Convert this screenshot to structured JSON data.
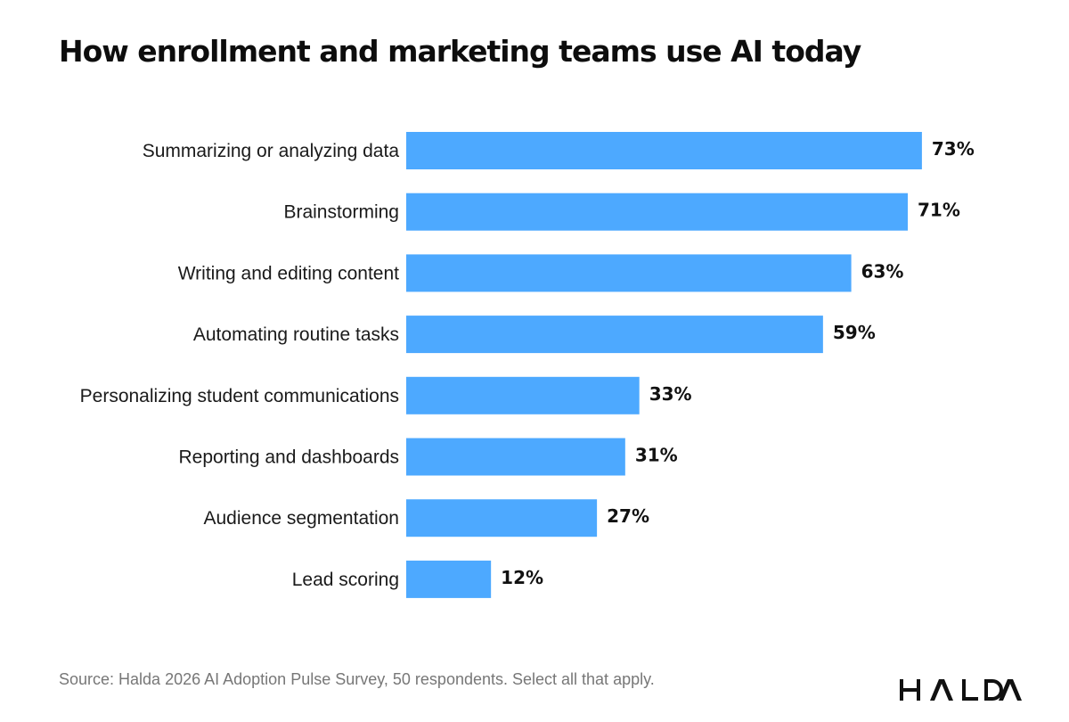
{
  "chart_data": {
    "type": "bar",
    "orientation": "horizontal",
    "title": "How enrollment and marketing teams use AI today",
    "categories": [
      "Summarizing or analyzing data",
      "Brainstorming",
      "Writing and editing content",
      "Automating routine tasks",
      "Personalizing student communications",
      "Reporting and dashboards",
      "Audience segmentation",
      "Lead scoring"
    ],
    "values": [
      73,
      71,
      63,
      59,
      33,
      31,
      27,
      12
    ],
    "value_labels": [
      "73%",
      "71%",
      "63%",
      "59%",
      "33%",
      "31%",
      "27%",
      "12%"
    ],
    "unit": "%",
    "xlim": [
      0,
      100
    ],
    "grid": false,
    "legend": "none",
    "bar_color": "#4da9ff"
  },
  "footer": {
    "source": "Source: Halda 2026 AI Adoption Pulse Survey, 50 respondents. Select all that apply.",
    "brand": "HALDA"
  },
  "colors": {
    "bar": "#4da9ff",
    "title": "#0d0d0d",
    "source_text": "#777777",
    "logo": "#111111"
  }
}
